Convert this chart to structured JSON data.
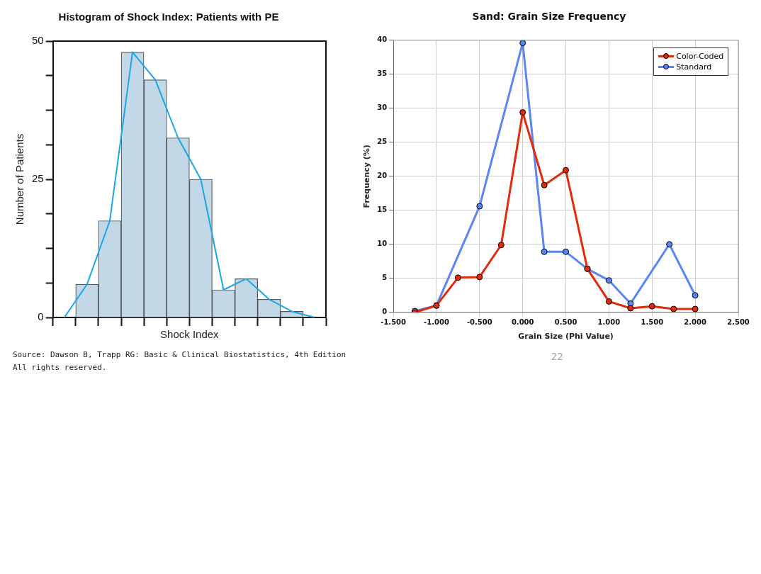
{
  "chart_data": [
    {
      "type": "bar",
      "title": "Histogram of Shock Index: Patients with PE",
      "xlabel": "Shock Index",
      "ylabel": "Number of Patients",
      "categories": [
        null,
        null,
        null,
        null,
        null,
        null,
        null,
        null,
        null,
        null,
        null,
        null
      ],
      "series": [
        {
          "type": "bar",
          "color": "#c2d8e6",
          "values": [
            null,
            6,
            17.5,
            48,
            43,
            32.5,
            25,
            5,
            7,
            3.3,
            1.1,
            null
          ]
        },
        {
          "type": "line",
          "color": "#1aa7e8",
          "values": [
            0,
            6,
            17.5,
            48,
            43,
            32.5,
            25,
            5,
            7,
            3.3,
            1.1,
            0
          ]
        }
      ],
      "ylim": [
        0,
        50
      ],
      "yticks": [
        0,
        {
          "value": 6.25,
          "label": null
        },
        {
          "value": 12.5,
          "label": null
        },
        {
          "value": 18.75,
          "label": null
        },
        25,
        {
          "value": 31.25,
          "label": null
        },
        {
          "value": 37.5,
          "label": null
        },
        {
          "value": 43.75,
          "label": null
        },
        50
      ],
      "grid": false,
      "legend": false,
      "tick_labels": "y",
      "marker": "none",
      "annotations": [
        "Source: Dawson B, Trapp RG: Basic & Clinical Biostatistics, 4th Edition",
        "All rights reserved."
      ]
    },
    {
      "type": "line",
      "title": "Sand: Grain Size Frequency",
      "xlabel": "Grain Size (Phi Value)",
      "ylabel": "Frequency (%)",
      "series": [
        {
          "name": "Color-Coded",
          "color": "#e22b0b",
          "x": [
            -1.25,
            -1.0,
            -0.75,
            -0.5,
            -0.25,
            0.0,
            0.25,
            0.5,
            0.75,
            1.0,
            1.25,
            1.5,
            1.75,
            2.0
          ],
          "values": [
            0,
            1.0,
            5.1,
            5.2,
            9.9,
            29.4,
            18.7,
            20.9,
            6.4,
            1.6,
            0.6,
            0.9,
            0.5,
            0.5
          ]
        },
        {
          "name": "Standard",
          "color": "#5b84f4",
          "x": [
            -1.25,
            -1.0,
            -0.5,
            0.0,
            0.25,
            0.5,
            0.75,
            1.0,
            1.25,
            1.7,
            2.0
          ],
          "values": [
            0.2,
            1.0,
            15.6,
            39.6,
            8.9,
            8.9,
            6.4,
            4.7,
            1.3,
            10.0,
            2.5
          ]
        }
      ],
      "xlim": [
        -1.5,
        2.5
      ],
      "xticks": [
        {
          "value": -1.5,
          "label": "-1.500"
        },
        {
          "value": -1.0,
          "label": "-1.000"
        },
        {
          "value": -0.5,
          "label": "-0.500"
        },
        {
          "value": 0,
          "label": "0.000"
        },
        {
          "value": 0.5,
          "label": "0.500"
        },
        {
          "value": 1.0,
          "label": "1.000"
        },
        {
          "value": 1.5,
          "label": "1.500"
        },
        {
          "value": 2.0,
          "label": "2.000"
        },
        {
          "value": 2.5,
          "label": "2.500"
        }
      ],
      "ylim": [
        0,
        40
      ],
      "yticks": [
        0,
        5,
        10,
        15,
        20,
        25,
        30,
        35,
        40
      ],
      "grid": true,
      "legend": "top right",
      "marker": "circle",
      "annotations": [
        "22"
      ]
    }
  ]
}
